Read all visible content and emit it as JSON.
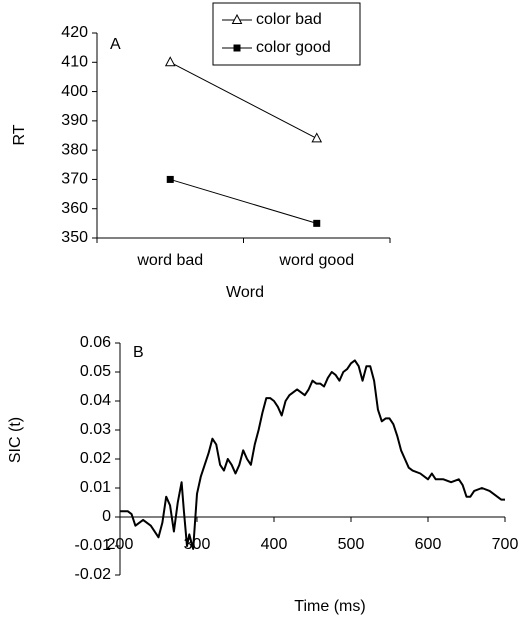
{
  "chart_data": [
    {
      "type": "line",
      "panel": "A",
      "x_label": "Word",
      "y_label": "RT",
      "categories": [
        "word bad",
        "word good"
      ],
      "series": [
        {
          "name": "color bad",
          "color": "#000000",
          "marker": "triangle-open",
          "values": [
            410,
            384
          ]
        },
        {
          "name": "color good",
          "color": "#000000",
          "marker": "square-filled",
          "values": [
            370,
            355
          ]
        }
      ],
      "ylim": [
        350,
        420
      ],
      "yticks": [
        350,
        360,
        370,
        380,
        390,
        400,
        410,
        420
      ],
      "legend": "top"
    },
    {
      "type": "line",
      "panel": "B",
      "x_label": "Time (ms)",
      "y_label": "SIC (t)",
      "x": [
        200,
        210,
        215,
        220,
        230,
        240,
        250,
        255,
        260,
        265,
        270,
        275,
        280,
        283,
        287,
        290,
        295,
        300,
        305,
        310,
        315,
        320,
        325,
        330,
        335,
        340,
        345,
        350,
        355,
        360,
        365,
        370,
        375,
        380,
        385,
        390,
        395,
        400,
        405,
        410,
        415,
        420,
        425,
        430,
        435,
        440,
        445,
        450,
        455,
        460,
        465,
        470,
        475,
        480,
        485,
        490,
        495,
        500,
        505,
        510,
        515,
        520,
        525,
        530,
        535,
        540,
        545,
        550,
        555,
        560,
        565,
        570,
        575,
        580,
        590,
        600,
        605,
        610,
        620,
        630,
        640,
        645,
        650,
        655,
        660,
        670,
        680,
        690,
        695,
        700
      ],
      "series": [
        {
          "color": "#000000",
          "values": [
            0.002,
            0.002,
            0.001,
            -0.003,
            -0.001,
            -0.003,
            -0.007,
            -0.002,
            0.007,
            0.004,
            -0.005,
            0.005,
            0.012,
            0.002,
            -0.01,
            -0.006,
            -0.011,
            0.008,
            0.014,
            0.018,
            0.022,
            0.027,
            0.025,
            0.018,
            0.016,
            0.02,
            0.018,
            0.015,
            0.018,
            0.023,
            0.02,
            0.018,
            0.025,
            0.03,
            0.036,
            0.041,
            0.041,
            0.04,
            0.038,
            0.035,
            0.04,
            0.042,
            0.043,
            0.044,
            0.043,
            0.042,
            0.044,
            0.047,
            0.046,
            0.046,
            0.045,
            0.048,
            0.05,
            0.049,
            0.047,
            0.05,
            0.051,
            0.053,
            0.054,
            0.052,
            0.047,
            0.052,
            0.052,
            0.047,
            0.037,
            0.033,
            0.034,
            0.034,
            0.032,
            0.028,
            0.023,
            0.02,
            0.017,
            0.016,
            0.015,
            0.013,
            0.015,
            0.013,
            0.013,
            0.012,
            0.013,
            0.011,
            0.007,
            0.007,
            0.009,
            0.01,
            0.009,
            0.007,
            0.006,
            0.006
          ]
        }
      ],
      "xlim": [
        200,
        700
      ],
      "xticks": [
        200,
        300,
        400,
        500,
        600,
        700
      ],
      "ylim": [
        -0.02,
        0.06
      ],
      "yticks": [
        -0.02,
        -0.01,
        0,
        0.01,
        0.02,
        0.03,
        0.04,
        0.05,
        0.06
      ]
    }
  ]
}
